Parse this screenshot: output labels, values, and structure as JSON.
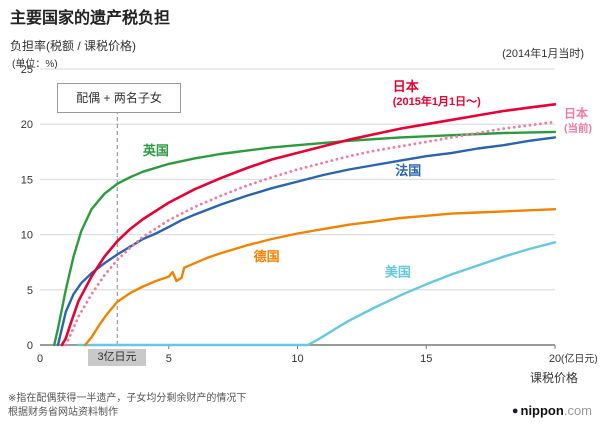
{
  "header": {
    "title": "主要国家的遗产税负担",
    "y_axis_title": "负担率(税额 / 课税价格)",
    "unit": "(单位：%)",
    "as_of": "(2014年1月当时)"
  },
  "annotation": {
    "box_label": "配偶 + 两名子女",
    "x_marker_label": "3亿日元",
    "marker_x": 3
  },
  "x_axis": {
    "label": "课税价格",
    "unit_suffix": "(亿日元)",
    "ticks": [
      0,
      5,
      10,
      15,
      20
    ]
  },
  "y_axis": {
    "ticks": [
      0,
      5,
      10,
      15,
      20,
      25
    ]
  },
  "footnote": {
    "line1": "※指在配偶获得一半遗产，子女均分剩余财产的情况下",
    "line2": "根据财务省网站资料制作"
  },
  "logo": {
    "dot": "●",
    "name": "nippon",
    "tld": ".com"
  },
  "chart_data": {
    "type": "line",
    "title": "主要国家的遗产税负担",
    "xlabel": "课税价格(亿日元)",
    "ylabel": "负担率(税额/课税价格) %",
    "xlim": [
      0,
      20
    ],
    "ylim": [
      0,
      25
    ],
    "grid": "horizontal",
    "marker_line_x": 3,
    "colors": {
      "grid": "#d8d8d8",
      "axis": "#7a7a7a",
      "marker": "#888888"
    },
    "series": [
      {
        "id": "usa",
        "name": "美国",
        "color": "#66c7e0",
        "style": "solid",
        "width": 2.4,
        "label_lines": [
          "美国"
        ],
        "label_pos": {
          "x": 13.9,
          "y": 6.2,
          "anchor": "middle"
        },
        "label_size": 13,
        "label_sub_size": 11,
        "points": [
          [
            1.5,
            0
          ],
          [
            10.4,
            0
          ],
          [
            10.8,
            0.5
          ],
          [
            11.5,
            1.5
          ],
          [
            12,
            2.2
          ],
          [
            13,
            3.4
          ],
          [
            14,
            4.5
          ],
          [
            15,
            5.5
          ],
          [
            16,
            6.4
          ],
          [
            17,
            7.2
          ],
          [
            18,
            8
          ],
          [
            19,
            8.7
          ],
          [
            20,
            9.3
          ]
        ]
      },
      {
        "id": "germany",
        "name": "德国",
        "color": "#f08300",
        "style": "solid",
        "width": 2.4,
        "label_lines": [
          "德国"
        ],
        "label_pos": {
          "x": 8.8,
          "y": 7.6,
          "anchor": "middle"
        },
        "label_size": 13,
        "label_sub_size": 11,
        "points": [
          [
            1.75,
            0
          ],
          [
            2,
            0.7
          ],
          [
            2.3,
            1.8
          ],
          [
            2.6,
            2.8
          ],
          [
            3,
            3.9
          ],
          [
            3.5,
            4.7
          ],
          [
            4,
            5.3
          ],
          [
            4.5,
            5.8
          ],
          [
            5,
            6.2
          ],
          [
            5.15,
            6.6
          ],
          [
            5.3,
            5.8
          ],
          [
            5.5,
            6.1
          ],
          [
            5.6,
            7
          ],
          [
            6,
            7.4
          ],
          [
            6.5,
            7.9
          ],
          [
            7,
            8.3
          ],
          [
            8,
            9
          ],
          [
            9,
            9.6
          ],
          [
            10,
            10.1
          ],
          [
            11,
            10.5
          ],
          [
            12,
            10.9
          ],
          [
            13,
            11.2
          ],
          [
            14,
            11.5
          ],
          [
            15,
            11.7
          ],
          [
            16,
            11.9
          ],
          [
            17,
            12
          ],
          [
            18,
            12.1
          ],
          [
            19,
            12.2
          ],
          [
            20,
            12.3
          ]
        ]
      },
      {
        "id": "france",
        "name": "法国",
        "color": "#2a64ad",
        "style": "solid",
        "width": 2.4,
        "label_lines": [
          "法国"
        ],
        "label_pos": {
          "x": 14.3,
          "y": 15.4,
          "anchor": "middle"
        },
        "label_size": 13,
        "label_sub_size": 11,
        "points": [
          [
            0.7,
            0
          ],
          [
            0.85,
            1.5
          ],
          [
            1,
            3
          ],
          [
            1.3,
            4.6
          ],
          [
            1.6,
            5.6
          ],
          [
            2,
            6.5
          ],
          [
            2.5,
            7.4
          ],
          [
            3,
            8.2
          ],
          [
            3.5,
            8.9
          ],
          [
            4,
            9.6
          ],
          [
            4.5,
            10.1
          ],
          [
            5,
            10.7
          ],
          [
            5.5,
            11.3
          ],
          [
            6,
            11.8
          ],
          [
            7,
            12.7
          ],
          [
            8,
            13.5
          ],
          [
            9,
            14.2
          ],
          [
            10,
            14.8
          ],
          [
            11,
            15.4
          ],
          [
            12,
            15.9
          ],
          [
            13,
            16.3
          ],
          [
            14,
            16.7
          ],
          [
            15,
            17.1
          ],
          [
            16,
            17.4
          ],
          [
            17,
            17.8
          ],
          [
            18,
            18.1
          ],
          [
            19,
            18.5
          ],
          [
            20,
            18.8
          ]
        ]
      },
      {
        "id": "uk",
        "name": "英国",
        "color": "#2c9a3f",
        "style": "solid",
        "width": 2.4,
        "label_lines": [
          "英国"
        ],
        "label_pos": {
          "x": 4.5,
          "y": 17.2,
          "anchor": "middle"
        },
        "label_size": 13,
        "label_sub_size": 11,
        "points": [
          [
            0.55,
            0
          ],
          [
            0.7,
            1.5
          ],
          [
            1,
            5
          ],
          [
            1.3,
            8
          ],
          [
            1.6,
            10.3
          ],
          [
            2,
            12.3
          ],
          [
            2.5,
            13.7
          ],
          [
            3,
            14.6
          ],
          [
            3.5,
            15.2
          ],
          [
            4,
            15.7
          ],
          [
            5,
            16.4
          ],
          [
            6,
            16.9
          ],
          [
            7,
            17.3
          ],
          [
            8,
            17.6
          ],
          [
            9,
            17.9
          ],
          [
            10,
            18.1
          ],
          [
            12,
            18.5
          ],
          [
            14,
            18.8
          ],
          [
            16,
            19
          ],
          [
            18,
            19.2
          ],
          [
            20,
            19.3
          ]
        ]
      },
      {
        "id": "japan-current",
        "name": "日本(当前)",
        "color": "#ee7c9e",
        "style": "dotted",
        "width": 2.8,
        "label_lines": [
          "日本",
          "(当前)"
        ],
        "label_pos": {
          "x": 20.35,
          "y": 20.6,
          "anchor": "start"
        },
        "label_size": 12,
        "label_sub_size": 10.5,
        "points": [
          [
            1,
            0
          ],
          [
            1.2,
            1
          ],
          [
            1.5,
            2.6
          ],
          [
            2,
            4.6
          ],
          [
            2.5,
            6.3
          ],
          [
            3,
            7.7
          ],
          [
            3.5,
            8.8
          ],
          [
            4,
            9.8
          ],
          [
            5,
            11.3
          ],
          [
            6,
            12.5
          ],
          [
            7,
            13.5
          ],
          [
            8,
            14.4
          ],
          [
            9,
            15.2
          ],
          [
            10,
            15.9
          ],
          [
            11,
            16.5
          ],
          [
            12,
            17.1
          ],
          [
            13,
            17.6
          ],
          [
            14,
            18
          ],
          [
            15,
            18.4
          ],
          [
            16,
            18.8
          ],
          [
            17,
            19.2
          ],
          [
            18,
            19.6
          ],
          [
            19,
            19.9
          ],
          [
            20,
            20.2
          ]
        ]
      },
      {
        "id": "japan-2015",
        "name": "日本(2015年1月1日～)",
        "color": "#e60033",
        "style": "solid",
        "width": 2.6,
        "label_lines": [
          "日本",
          "(2015年1月1日～)"
        ],
        "label_pos": {
          "x": 13.7,
          "y": 23.0,
          "anchor": "start"
        },
        "label_size": 13,
        "label_sub_size": 11,
        "points": [
          [
            0.85,
            0
          ],
          [
            1,
            0.6
          ],
          [
            1.2,
            2
          ],
          [
            1.5,
            4
          ],
          [
            2,
            6.2
          ],
          [
            2.5,
            8
          ],
          [
            3,
            9.4
          ],
          [
            3.5,
            10.5
          ],
          [
            4,
            11.4
          ],
          [
            5,
            12.9
          ],
          [
            6,
            14.1
          ],
          [
            7,
            15.1
          ],
          [
            8,
            16
          ],
          [
            9,
            16.8
          ],
          [
            10,
            17.4
          ],
          [
            11,
            18
          ],
          [
            12,
            18.6
          ],
          [
            13,
            19.1
          ],
          [
            14,
            19.6
          ],
          [
            15,
            20
          ],
          [
            16,
            20.4
          ],
          [
            17,
            20.8
          ],
          [
            18,
            21.2
          ],
          [
            19,
            21.5
          ],
          [
            20,
            21.8
          ]
        ]
      }
    ]
  }
}
